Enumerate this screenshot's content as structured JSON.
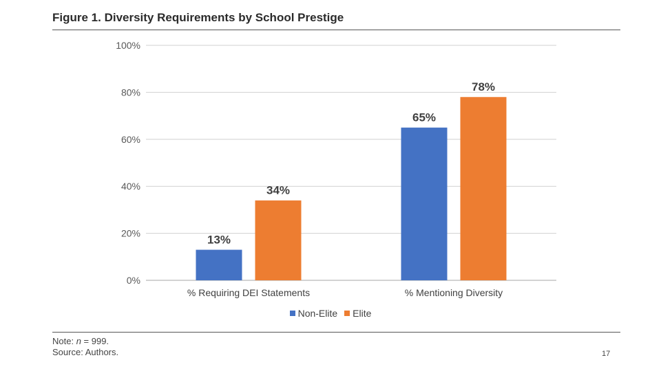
{
  "figure": {
    "title": "Figure 1. Diversity Requirements by School Prestige"
  },
  "chart_data": {
    "type": "bar",
    "title": "Figure 1. Diversity Requirements by School Prestige",
    "categories": [
      "% Requiring DEI Statements",
      "% Mentioning Diversity"
    ],
    "series": [
      {
        "name": "Non-Elite",
        "values": [
          13,
          65
        ],
        "labels": [
          "13%",
          "65%"
        ],
        "color": "#4472C4"
      },
      {
        "name": "Elite",
        "values": [
          34,
          78
        ],
        "labels": [
          "34%",
          "78%"
        ],
        "color": "#ED7D31"
      }
    ],
    "ylim": [
      0,
      100
    ],
    "yticks": [
      0,
      20,
      40,
      60,
      80,
      100
    ],
    "ytick_labels": [
      "0%",
      "20%",
      "40%",
      "60%",
      "80%",
      "100%"
    ],
    "grid": true,
    "legend_position": "bottom"
  },
  "footer": {
    "note_prefix": "Note: ",
    "note_n": "n",
    "note_suffix": " = 999.",
    "source": "Source: Authors."
  },
  "page_number": "17"
}
